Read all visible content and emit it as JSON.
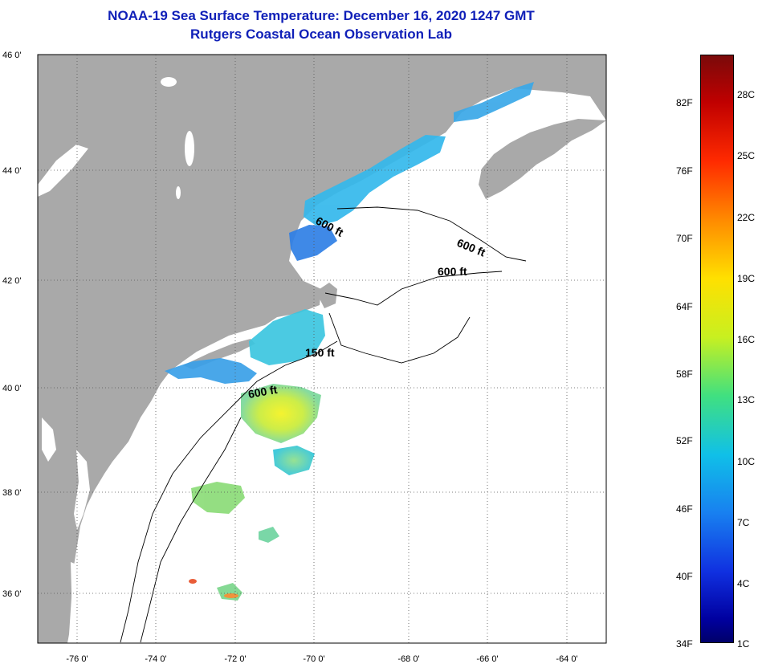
{
  "title": {
    "line1": "NOAA-19 Sea Surface Temperature:  December 16, 2020 1247 GMT",
    "line2": "Rutgers Coastal Ocean Observation Lab"
  },
  "map": {
    "lon_range": [
      -77.0,
      -63.5
    ],
    "lat_range": [
      35.0,
      46.0
    ],
    "lat_labels": [
      "46 0'",
      "44 0'",
      "42 0'",
      "40 0'",
      "38 0'",
      "36 0'"
    ],
    "lon_labels": [
      "-76 0'",
      "-74 0'",
      "-72 0'",
      "-70 0'",
      "-68 0'",
      "-66 0'",
      "-64 0'"
    ],
    "depth_labels": [
      "600 ft",
      "600 ft",
      "600 ft",
      "150 ft",
      "600 ft"
    ],
    "colors": {
      "land": "#a9a9a9",
      "ocean": "#ffffff",
      "grid": "#555555"
    }
  },
  "colorbar": {
    "fahrenheit": [
      "82F",
      "76F",
      "70F",
      "64F",
      "58F",
      "52F",
      "46F",
      "40F",
      "34F"
    ],
    "celsius": [
      "28C",
      "25C",
      "22C",
      "19C",
      "16C",
      "13C",
      "10C",
      "7C",
      "4C",
      "1C"
    ],
    "range_celsius": [
      1,
      30
    ]
  }
}
